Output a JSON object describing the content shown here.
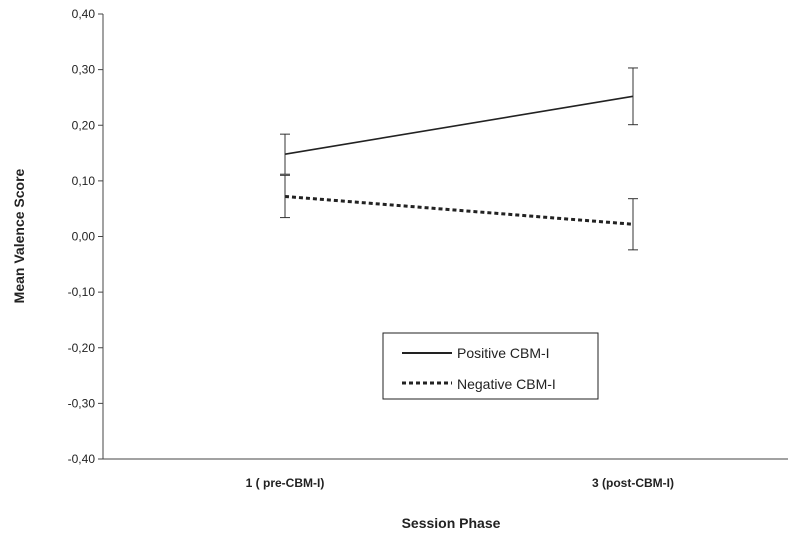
{
  "chart_data": {
    "type": "line",
    "categories": [
      "1 ( pre-CBM-I)",
      "3 (post-CBM-I)"
    ],
    "xlabel": "Session Phase",
    "ylabel": "Mean Valence Score",
    "ylim": [
      -0.4,
      0.4
    ],
    "ytick_step": 0.1,
    "yticks": [
      "-0,40",
      "-0,30",
      "-0,20",
      "-0,10",
      "0,00",
      "0,10",
      "0,20",
      "0,30",
      "0,40"
    ],
    "grid": false,
    "legend_position": "center-bottom",
    "series": [
      {
        "name": "Positive CBM-I",
        "style": "solid",
        "color": "#222222",
        "values": [
          0.148,
          0.252
        ],
        "error": [
          0.036,
          0.051
        ]
      },
      {
        "name": "Negative CBM-I",
        "style": "dashed",
        "color": "#222222",
        "values": [
          0.072,
          0.022
        ],
        "error": [
          0.038,
          0.046
        ]
      }
    ]
  }
}
